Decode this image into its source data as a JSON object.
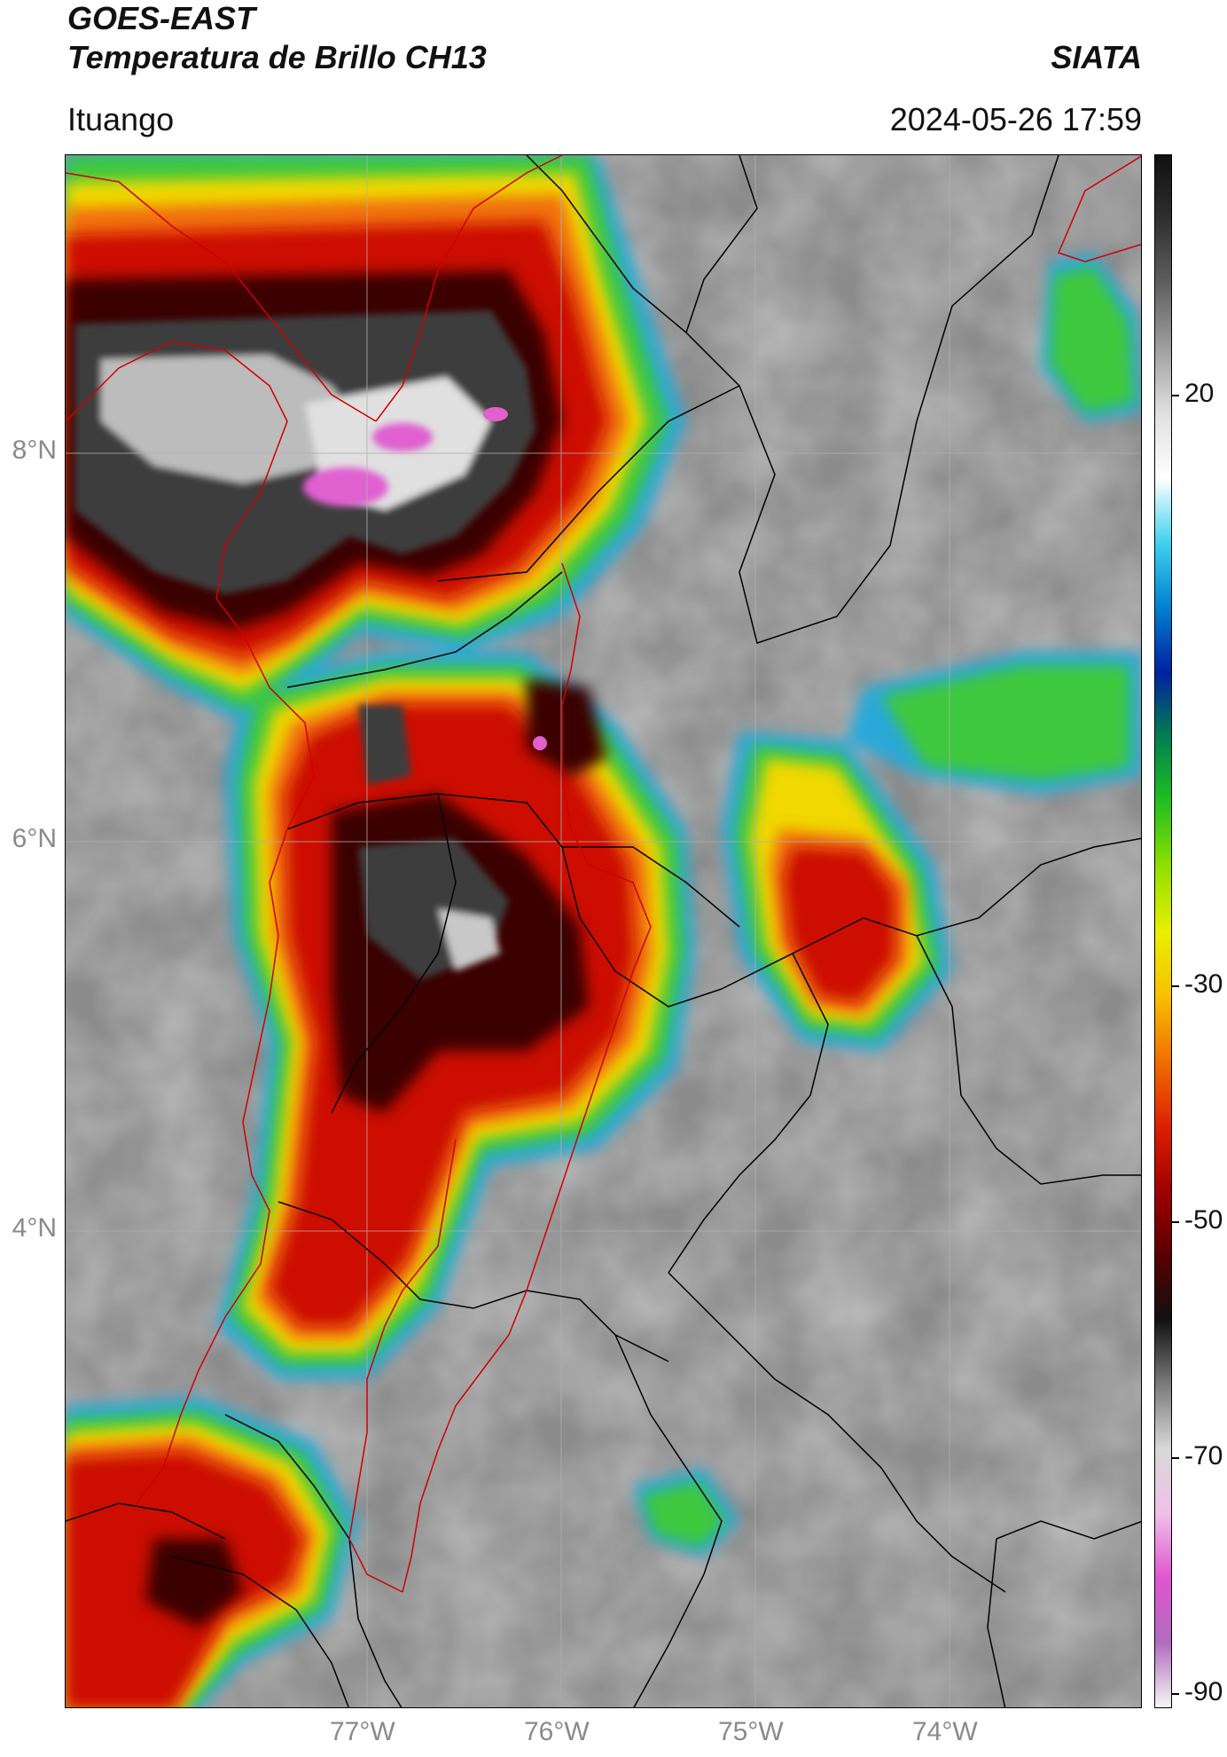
{
  "header": {
    "satellite": "GOES-EAST",
    "product": "Temperatura de Brillo CH13",
    "brand": "SIATA",
    "location": "Ituango",
    "datetime": "2024-05-26 17:59"
  },
  "map": {
    "latitude_labels": [
      "8°N",
      "6°N",
      "4°N"
    ],
    "longitude_labels": [
      "77°W",
      "76°W",
      "75°W",
      "74°W"
    ],
    "colorbar": {
      "ticks": [
        "20",
        "-30",
        "-50",
        "-70",
        "-90"
      ],
      "gradient": [
        "#f5f5f5",
        "#b06cc0",
        "#e055d0",
        "#f0c0e8",
        "#d8d8d8",
        "#7a7a7a",
        "#101010",
        "#5a0000",
        "#a00000",
        "#e02000",
        "#f07000",
        "#f8c000",
        "#e8f000",
        "#90e000",
        "#20c020",
        "#008050",
        "#0020a0",
        "#0080d0",
        "#40d0f0",
        "#ffffff",
        "#e0e0e0",
        "#a0a0a0",
        "#606060",
        "#303030",
        "#101010"
      ],
      "colors": {
        "cloud_gray": "#9a9a9a",
        "cold_red": "#d01000",
        "core_dark": "#202020",
        "overshoot_magenta": "#e060d0",
        "edge_green": "#30c030",
        "edge_blue": "#1050b0",
        "border_black": "#000000",
        "border_red": "#d00000"
      }
    }
  }
}
